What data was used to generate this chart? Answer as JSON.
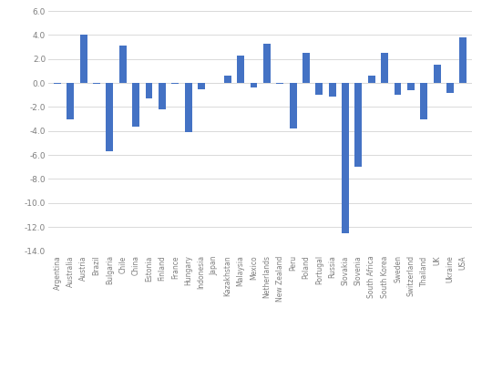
{
  "categories": [
    "Argentina",
    "Australia",
    "Austria",
    "Brazil",
    "Bulgaria",
    "Chile",
    "China",
    "Estonia",
    "Finland",
    "France",
    "Hungary",
    "Indonesia",
    "Japan",
    "Kazakhstan",
    "Malaysia",
    "Mexico",
    "Netherlands",
    "New Zealand",
    "Peru",
    "Poland",
    "Portugal",
    "Russia",
    "Slovakia",
    "Slovenia",
    "South Africa",
    "South Korea",
    "Sweden",
    "Switzerland",
    "Thailand",
    "UK",
    "Ukraine",
    "USA"
  ],
  "values": [
    -0.1,
    -3.0,
    4.0,
    -0.1,
    -5.7,
    3.1,
    -3.6,
    -1.3,
    -2.2,
    -0.1,
    -4.1,
    -0.5,
    0.0,
    0.6,
    2.3,
    -0.4,
    3.3,
    -0.1,
    -3.8,
    2.5,
    -1.0,
    -1.1,
    -12.5,
    -7.0,
    0.6,
    2.5,
    -1.0,
    -0.6,
    -3.0,
    1.5,
    -0.8,
    3.8
  ],
  "bar_color": "#4472C4",
  "ylim": [
    -14.0,
    6.0
  ],
  "yticks": [
    -14.0,
    -12.0,
    -10.0,
    -8.0,
    -6.0,
    -4.0,
    -2.0,
    0.0,
    2.0,
    4.0,
    6.0
  ],
  "background_color": "#ffffff",
  "grid_color": "#d9d9d9",
  "figsize": [
    5.29,
    4.05
  ],
  "dpi": 100
}
